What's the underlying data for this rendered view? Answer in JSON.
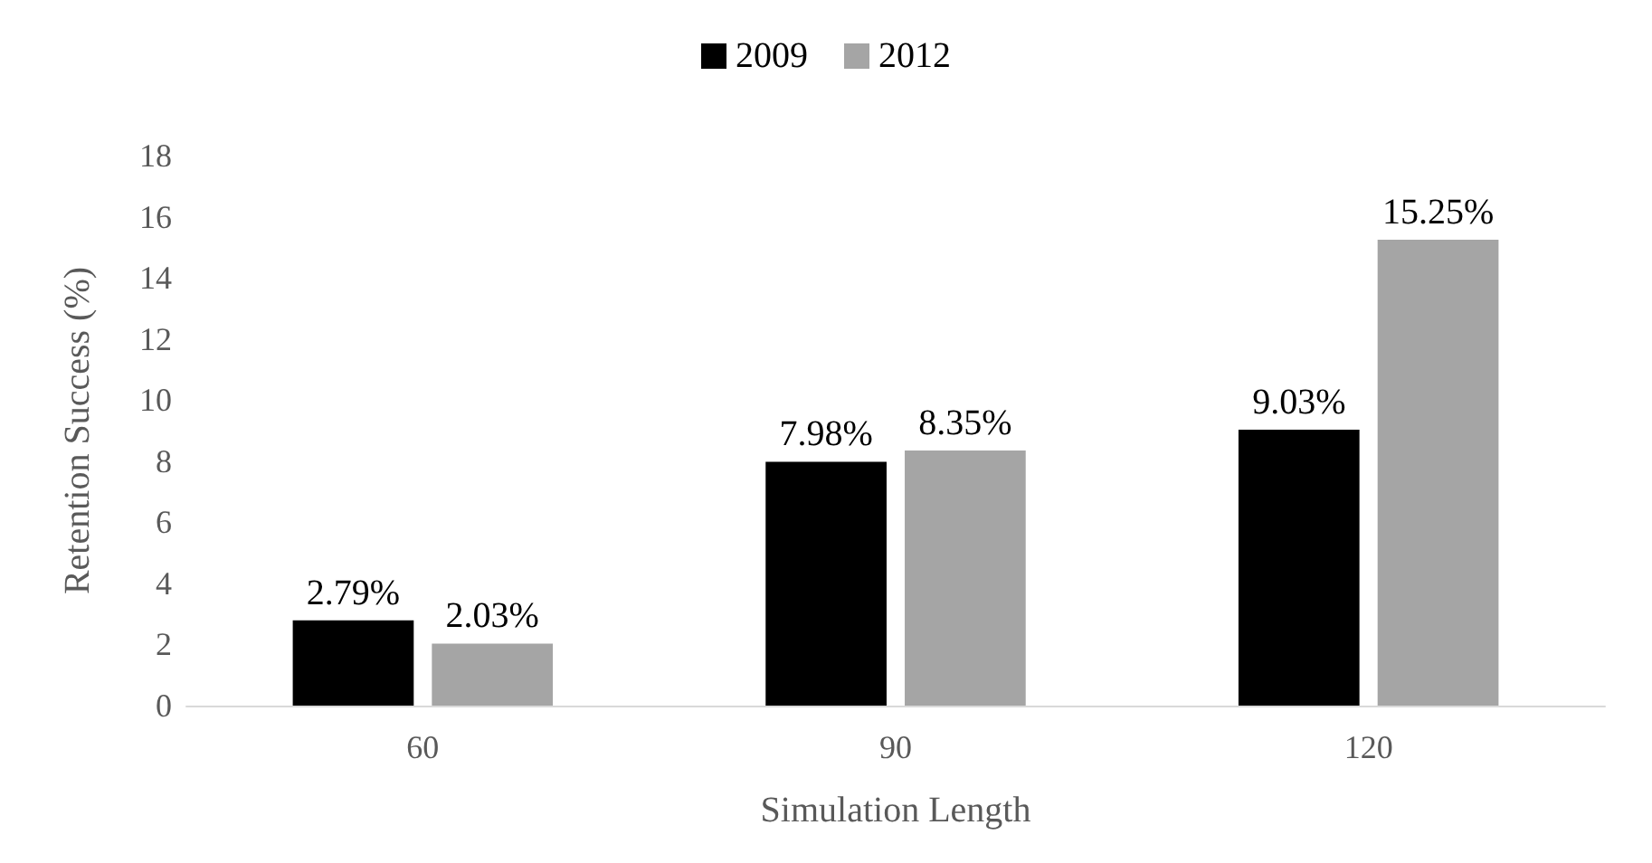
{
  "chart_data": {
    "type": "bar",
    "xlabel": "Simulation Length",
    "ylabel": "Retention Success (%)",
    "categories": [
      "60",
      "90",
      "120"
    ],
    "series": [
      {
        "name": "2009",
        "color": "#000000",
        "values": [
          2.79,
          7.98,
          9.03
        ],
        "value_labels": [
          "2.79%",
          "7.98%",
          "9.03%"
        ]
      },
      {
        "name": "2012",
        "color": "#a5a5a5",
        "values": [
          2.03,
          8.35,
          15.25
        ],
        "value_labels": [
          "2.03%",
          "8.35%",
          "15.25%"
        ]
      }
    ],
    "ylim": [
      0,
      18
    ],
    "yticks": [
      0,
      2,
      4,
      6,
      8,
      10,
      12,
      14,
      16,
      18
    ],
    "grid": false,
    "legend": "top"
  }
}
